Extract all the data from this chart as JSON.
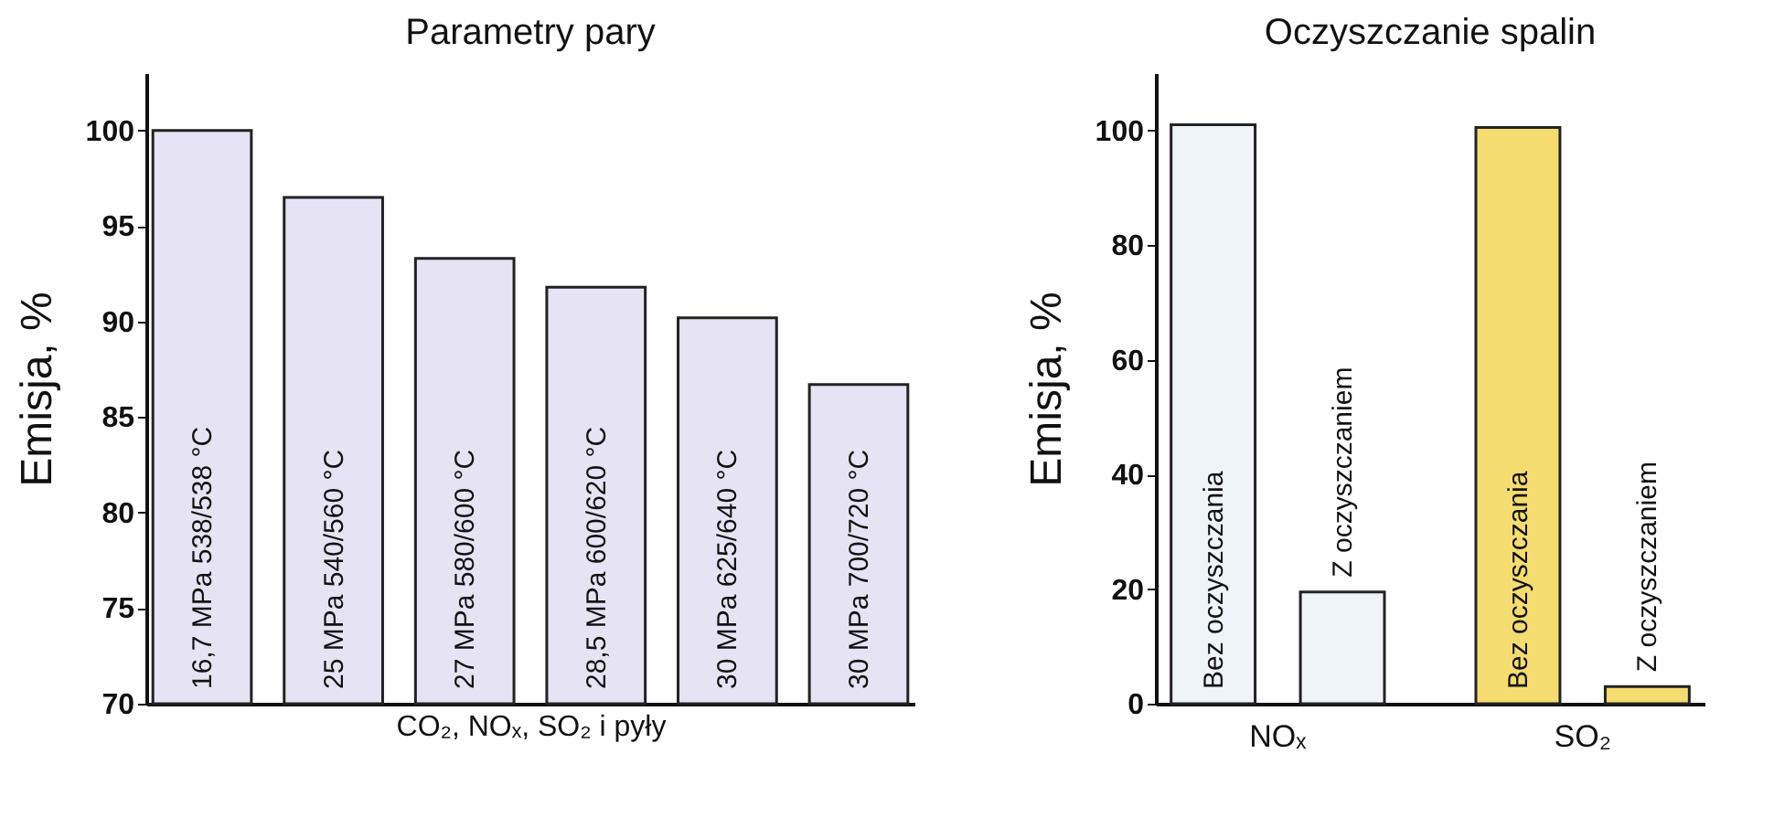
{
  "chart_data": [
    {
      "type": "bar",
      "title": "Parametry pary",
      "xlabel": "CO₂, NOₓ, SO₂ i pyły",
      "ylabel": "Emisja, %",
      "categories": [
        "16,7 MPa 538/538 °C",
        "25 MPa 540/560 °C",
        "27 MPa 580/600 °C",
        "28,5 MPa 600/620 °C",
        "30 MPa 625/640 °C",
        "30 MPa 700/720 °C"
      ],
      "values": [
        100,
        96.5,
        93.3,
        91.8,
        90.2,
        86.7
      ],
      "color": "#e6e4f4",
      "ylim": [
        70,
        103
      ],
      "yticks": [
        70,
        75,
        80,
        85,
        90,
        95,
        100
      ],
      "grid": false
    },
    {
      "type": "bar",
      "title": "Oczyszczanie spalin",
      "ylabel": "Emisja, %",
      "categories": [
        "NOₓ",
        "SO₂"
      ],
      "series": [
        {
          "name": "Bez oczyszczania",
          "colors": [
            "#eef4f8",
            "#f5dc70"
          ],
          "values": [
            101,
            100.5
          ]
        },
        {
          "name": "Z oczyszczaniem",
          "colors": [
            "#eef4f8",
            "#f5dc70"
          ],
          "values": [
            19.5,
            3
          ]
        }
      ],
      "ylim": [
        0,
        110
      ],
      "yticks": [
        0,
        20,
        40,
        60,
        80,
        100
      ],
      "grid": false
    }
  ]
}
